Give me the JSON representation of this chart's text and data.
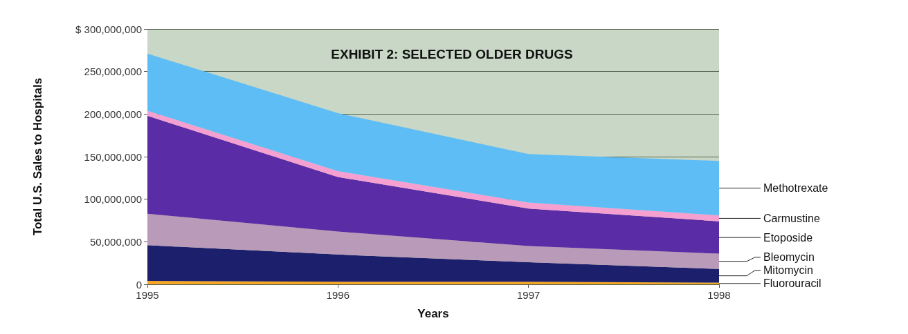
{
  "chart_data": {
    "type": "area",
    "stacked": true,
    "title": "EXHIBIT 2: SELECTED OLDER DRUGS",
    "xlabel": "Years",
    "ylabel": "Total U.S. Sales to Hospitals",
    "categories": [
      "1995",
      "1996",
      "1997",
      "1998"
    ],
    "series": [
      {
        "name": "Fluorouracil",
        "color": "#f5a623",
        "values": [
          4000000,
          3000000,
          3000000,
          2000000
        ]
      },
      {
        "name": "Mitomycin",
        "color": "#1c1f6b",
        "values": [
          42000000,
          32000000,
          23000000,
          16000000
        ]
      },
      {
        "name": "Bleomycin",
        "color": "#b99ab8",
        "values": [
          37000000,
          27000000,
          19000000,
          18000000
        ]
      },
      {
        "name": "Etoposide",
        "color": "#5a2ca5",
        "values": [
          115000000,
          64000000,
          44000000,
          38000000
        ]
      },
      {
        "name": "Carmustine",
        "color": "#f5a0d0",
        "values": [
          6000000,
          7000000,
          7000000,
          7000000
        ]
      },
      {
        "name": "Methotrexate",
        "color": "#5fbdf5",
        "values": [
          67000000,
          68000000,
          57000000,
          64000000
        ]
      }
    ],
    "ylim": [
      0,
      300000000
    ],
    "yticks": [
      0,
      {
        "value": 50000000,
        "label": "50,000,000"
      },
      {
        "value": 100000000,
        "label": "100,000,000"
      },
      {
        "value": 150000000,
        "label": "150,000,000"
      },
      {
        "value": 200000000,
        "label": "200,000,000"
      },
      {
        "value": 250000000,
        "label": "250,000,000"
      },
      {
        "value": 300000000,
        "label": "$ 300,000,000"
      }
    ],
    "grid": "y",
    "legend": false
  }
}
